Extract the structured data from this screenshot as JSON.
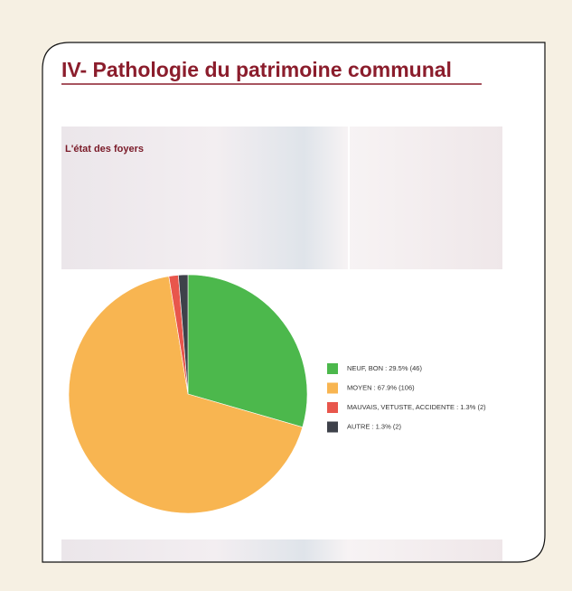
{
  "page": {
    "heading": "IV- Pathologie du patrimoine communal"
  },
  "chart_data": {
    "type": "pie",
    "title": "L'état des foyers",
    "categories": [
      "NEUF, BON : 29.5% (46)",
      "MOYEN : 67.9% (106)",
      "MAUVAIS, VETUSTE, ACCIDENTE : 1.3% (2)",
      "AUTRE : 1.3% (2)"
    ],
    "values": [
      46,
      106,
      2,
      2
    ],
    "colors": [
      "#4cb84c",
      "#f8b551",
      "#e8564c",
      "#3e414a"
    ]
  }
}
